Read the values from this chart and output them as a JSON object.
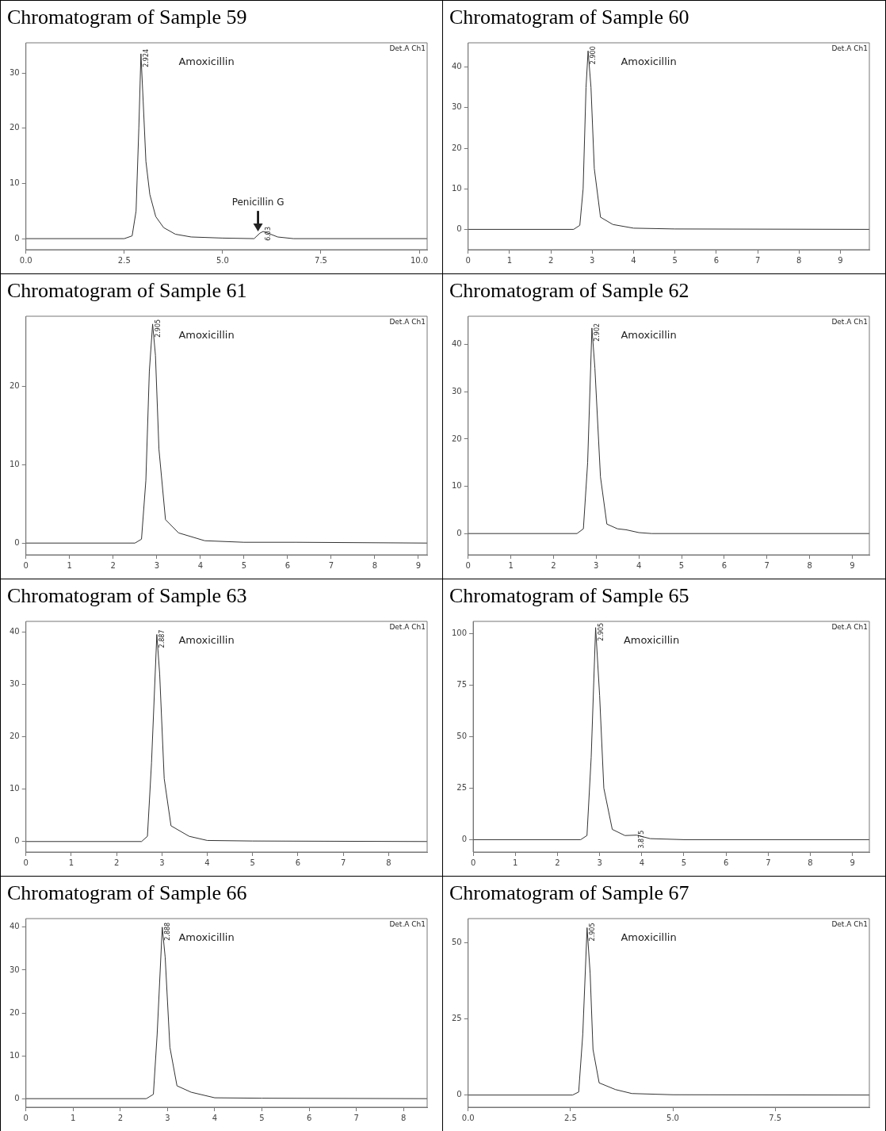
{
  "chart_data": [
    {
      "type": "line",
      "title": "Chromatogram of Sample 59",
      "marker": "none",
      "color": "#333333",
      "xlim": [
        0,
        10.2
      ],
      "xticks": [
        {
          "value": 0,
          "label": "0.0"
        },
        {
          "value": 2.5,
          "label": "2.5"
        },
        {
          "value": 5,
          "label": "5.0"
        },
        {
          "value": 7.5,
          "label": "7.5"
        },
        {
          "value": 10,
          "label": "10.0"
        }
      ],
      "ylim": [
        -2,
        35.5
      ],
      "yticks": [
        0,
        10,
        20,
        30
      ],
      "x": [
        0,
        2.5,
        2.7,
        2.8,
        2.87,
        2.924,
        2.98,
        3.05,
        3.15,
        3.3,
        3.5,
        3.8,
        4.2,
        5,
        5.8,
        5.95,
        6.03,
        6.15,
        6.4,
        6.8,
        10.2
      ],
      "values": [
        0,
        0,
        0.5,
        5,
        20,
        33.5,
        25,
        14,
        8,
        4,
        2,
        0.8,
        0.3,
        0.1,
        0,
        1,
        1.3,
        1,
        0.3,
        0,
        0
      ],
      "annotations": [
        "Amoxicillin",
        "Det.A Ch1",
        {
          "text": "2.924",
          "x": 2.924,
          "y": 33.5
        },
        {
          "text": "6.03",
          "x": 6.03,
          "y": 1.3
        },
        {
          "text": "Penicillin G",
          "x": 5.9,
          "y": 1
        }
      ]
    },
    {
      "type": "line",
      "title": "Chromatogram of Sample 60",
      "marker": "none",
      "color": "#333333",
      "xlim": [
        0,
        9.7
      ],
      "xticks": [
        0,
        1,
        2,
        3,
        4,
        5,
        6,
        7,
        8,
        9
      ],
      "ylim": [
        -5,
        46
      ],
      "yticks": [
        0,
        10,
        20,
        30,
        40
      ],
      "x": [
        0,
        2.55,
        2.7,
        2.78,
        2.85,
        2.9,
        2.97,
        3.05,
        3.2,
        3.5,
        4,
        5,
        9.7
      ],
      "values": [
        0,
        0,
        1,
        10,
        35,
        44,
        35,
        15,
        3,
        1.2,
        0.3,
        0.1,
        0
      ],
      "annotations": [
        "Amoxicillin",
        "Det.A Ch1",
        {
          "text": "2.900",
          "x": 2.9,
          "y": 44
        }
      ]
    },
    {
      "type": "line",
      "title": "Chromatogram of Sample 61",
      "marker": "none",
      "color": "#333333",
      "xlim": [
        0,
        9.2
      ],
      "xticks": [
        0,
        1,
        2,
        3,
        4,
        5,
        6,
        7,
        8,
        9
      ],
      "ylim": [
        -1.5,
        29
      ],
      "yticks": [
        0,
        10,
        20
      ],
      "x": [
        0,
        2.5,
        2.65,
        2.75,
        2.83,
        2.905,
        2.97,
        3.05,
        3.2,
        3.5,
        4.1,
        5,
        6.2,
        9.2
      ],
      "values": [
        0,
        0,
        0.5,
        8,
        22,
        28,
        24,
        12,
        3,
        1.3,
        0.3,
        0.1,
        0.1,
        0
      ],
      "annotations": [
        "Amoxicillin",
        "Det.A Ch1",
        {
          "text": "2.905",
          "x": 2.905,
          "y": 28
        }
      ]
    },
    {
      "type": "line",
      "title": "Chromatogram of Sample 62",
      "marker": "none",
      "color": "#333333",
      "xlim": [
        0,
        9.4
      ],
      "xticks": [
        0,
        1,
        2,
        3,
        4,
        5,
        6,
        7,
        8,
        9
      ],
      "ylim": [
        -4.5,
        46
      ],
      "yticks": [
        0,
        10,
        20,
        30,
        40
      ],
      "x": [
        0,
        2.55,
        2.7,
        2.8,
        2.9,
        2.97,
        3.1,
        3.25,
        3.5,
        3.7,
        4,
        4.3,
        9.4
      ],
      "values": [
        0,
        0,
        1,
        15,
        43.5,
        35,
        12,
        2,
        1,
        0.8,
        0.2,
        0,
        0
      ],
      "annotations": [
        "Amoxicillin",
        "Det.A Ch1",
        {
          "text": "2.902",
          "x": 2.902,
          "y": 43.5
        }
      ]
    },
    {
      "type": "line",
      "title": "Chromatogram of Sample 63",
      "marker": "none",
      "color": "#333333",
      "xlim": [
        0,
        8.85
      ],
      "xticks": [
        0,
        1,
        2,
        3,
        4,
        5,
        6,
        7,
        8
      ],
      "ylim": [
        -2,
        42
      ],
      "yticks": [
        0,
        10,
        20,
        30,
        40
      ],
      "x": [
        0,
        2.55,
        2.68,
        2.77,
        2.887,
        2.95,
        3.05,
        3.2,
        3.6,
        4,
        5,
        8.85
      ],
      "values": [
        0,
        0,
        1,
        15,
        39.5,
        32,
        12,
        3,
        1,
        0.2,
        0.1,
        0
      ],
      "annotations": [
        "Amoxicillin",
        "Det.A Ch1",
        {
          "text": "2.887",
          "x": 2.887,
          "y": 39.5
        }
      ]
    },
    {
      "type": "line",
      "title": "Chromatogram of Sample 65",
      "marker": "none",
      "color": "#333333",
      "xlim": [
        0,
        9.4
      ],
      "xticks": [
        0,
        1,
        2,
        3,
        4,
        5,
        6,
        7,
        8,
        9
      ],
      "ylim": [
        -6,
        106
      ],
      "yticks": [
        0,
        25,
        50,
        75,
        100
      ],
      "x": [
        0,
        2.55,
        2.7,
        2.8,
        2.905,
        3,
        3.1,
        3.3,
        3.6,
        3.875,
        4.2,
        5,
        9.4
      ],
      "values": [
        0,
        0,
        2,
        40,
        103,
        70,
        25,
        5,
        2,
        2.2,
        0.5,
        0,
        0
      ],
      "annotations": [
        "Amoxicillin",
        "Det.A Ch1",
        {
          "text": "2.905",
          "x": 2.905,
          "y": 103
        },
        {
          "text": "3.875",
          "x": 3.875,
          "y": 2.2
        }
      ]
    },
    {
      "type": "line",
      "title": "Chromatogram of Sample 66",
      "marker": "none",
      "color": "#333333",
      "xlim": [
        0,
        8.5
      ],
      "xticks": [
        0,
        1,
        2,
        3,
        4,
        5,
        6,
        7,
        8
      ],
      "ylim": [
        -2,
        42
      ],
      "yticks": [
        0,
        10,
        20,
        30,
        40
      ],
      "x": [
        0,
        2.55,
        2.7,
        2.78,
        2.888,
        2.95,
        3.05,
        3.2,
        3.5,
        4,
        5,
        8.5
      ],
      "values": [
        0,
        0,
        1,
        15,
        40,
        33,
        12,
        3,
        1.5,
        0.2,
        0.1,
        0
      ],
      "annotations": [
        "Amoxicillin",
        "Det.A Ch1",
        {
          "text": "2.888",
          "x": 2.888,
          "y": 40
        }
      ]
    },
    {
      "type": "line",
      "title": "Chromatogram of Sample 67",
      "marker": "none",
      "color": "#333333",
      "xlim": [
        0,
        9.8
      ],
      "xticks": [
        {
          "value": 0,
          "label": "0.0"
        },
        {
          "value": 2.5,
          "label": "2.5"
        },
        {
          "value": 5,
          "label": "5.0"
        },
        {
          "value": 7.5,
          "label": "7.5"
        }
      ],
      "ylim": [
        -4,
        58
      ],
      "yticks": [
        0,
        25,
        50
      ],
      "x": [
        0,
        2.55,
        2.7,
        2.8,
        2.905,
        2.98,
        3.05,
        3.2,
        3.6,
        4,
        5,
        9.8
      ],
      "values": [
        0,
        0,
        1,
        20,
        55,
        40,
        15,
        4,
        1.8,
        0.5,
        0.1,
        0
      ],
      "annotations": [
        "Amoxicillin",
        "Det.A Ch1",
        {
          "text": "2.905",
          "x": 2.905,
          "y": 55
        }
      ]
    }
  ]
}
